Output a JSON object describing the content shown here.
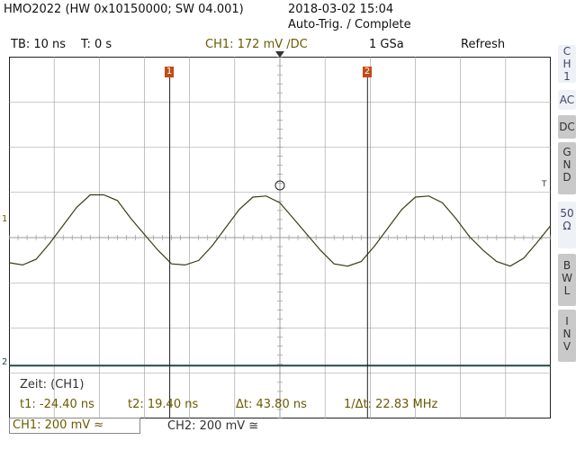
{
  "header": {
    "device": "HMO2022 (HW 0x10150000; SW 04.001)",
    "datetime": "2018-03-02 15:04",
    "status": "Auto-Trig. / Complete"
  },
  "topbar": {
    "timebase": "TB: 10 ns",
    "trigger_time": "T: 0 s",
    "channel_setting": "CH1: 172 mV ∕DC",
    "sample_rate": "1 GSa",
    "mode": "Refresh"
  },
  "side_menu": {
    "title": [
      "C",
      "H",
      "1"
    ],
    "buttons": [
      {
        "name": "ac",
        "lines": [
          "AC"
        ],
        "style": "light"
      },
      {
        "name": "dc",
        "lines": [
          "DC"
        ],
        "style": "gray"
      },
      {
        "name": "gnd",
        "lines": [
          "G",
          "N",
          "D"
        ],
        "style": "gray"
      },
      {
        "name": "50ohm",
        "lines": [
          "50",
          "Ω"
        ],
        "style": "light"
      },
      {
        "name": "bwl",
        "lines": [
          "B",
          "W",
          "L"
        ],
        "style": "gray"
      },
      {
        "name": "inv",
        "lines": [
          "I",
          "N",
          "V"
        ],
        "style": "gray"
      }
    ]
  },
  "markers": {
    "cursor1": "1",
    "cursor2": "2",
    "ch1_ref": "1",
    "ch2_ref": "2",
    "trigger_label": "T"
  },
  "measurements": {
    "title": "Zeit: (CH1)",
    "t1": "t1: -24.40 ns",
    "t2": "t2: 19.40 ns",
    "dt": "Δt: 43.80 ns",
    "freq": "1/Δt: 22.83 MHz"
  },
  "bottom": {
    "ch1": "CH1: 200 mV ≈",
    "ch2": "CH2: 200 mV ≅"
  },
  "colors": {
    "ch1_trace": "#3b3b16",
    "ch2_trace": "#1f4a46",
    "grid": "#9a9a9a",
    "cursor_marker": "#c24a14"
  },
  "chart_data": {
    "type": "line",
    "xlabel": "",
    "ylabel": "",
    "time_per_div_ns": 10,
    "volts_per_div_mV": 200,
    "divisions": {
      "x": 12,
      "y": 8
    },
    "xlim_ns": [
      -60,
      60
    ],
    "grid": true,
    "series": [
      {
        "name": "CH1",
        "x_ns": [
          -60,
          -57,
          -54,
          -51,
          -48,
          -45,
          -42,
          -39,
          -36,
          -33,
          -30,
          -27,
          -24,
          -21,
          -18,
          -15,
          -12,
          -9,
          -6,
          -3,
          0,
          3,
          6,
          9,
          12,
          15,
          18,
          21,
          24,
          27,
          30,
          33,
          36,
          39,
          42,
          45,
          48,
          51,
          54,
          57,
          60
        ],
        "y_mV": [
          -115,
          -125,
          -100,
          -30,
          50,
          130,
          185,
          185,
          160,
          80,
          10,
          -60,
          -120,
          -125,
          -105,
          -40,
          40,
          120,
          175,
          180,
          150,
          80,
          10,
          -60,
          -120,
          -130,
          -110,
          -40,
          40,
          120,
          175,
          180,
          150,
          80,
          0,
          -60,
          -110,
          -130,
          -95,
          -25,
          50
        ]
      },
      {
        "name": "CH2",
        "x_ns": [
          -60,
          60
        ],
        "y_mV": [
          -5,
          -5
        ]
      }
    ]
  }
}
